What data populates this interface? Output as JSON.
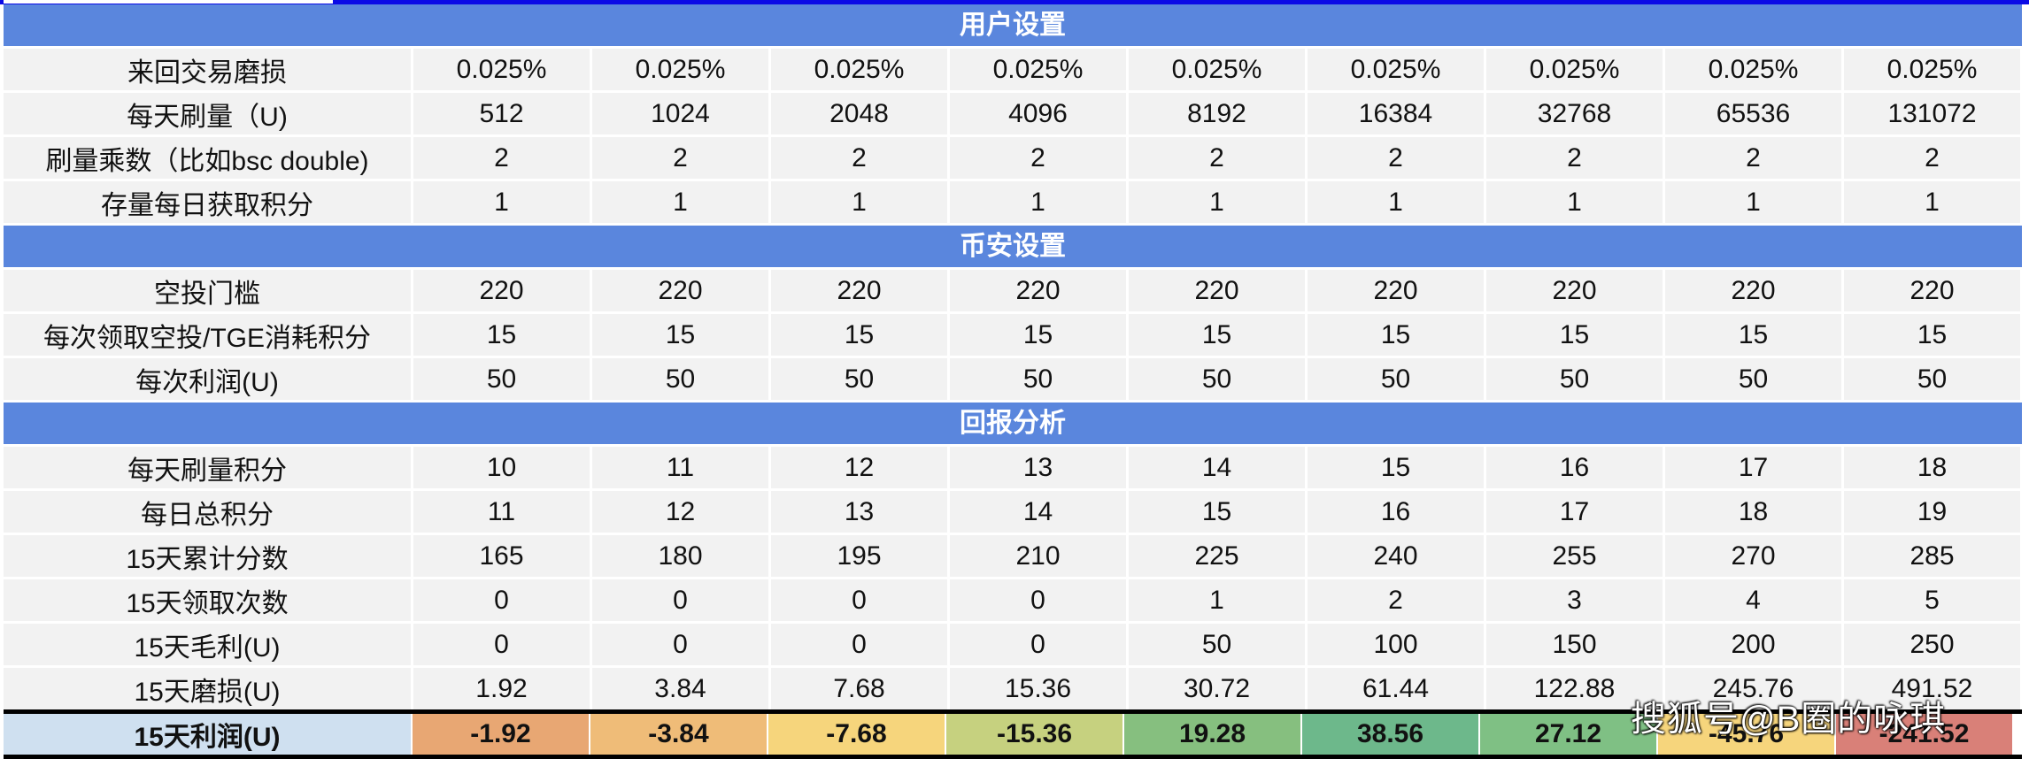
{
  "sections": [
    {
      "title": "用户设置",
      "rows": [
        {
          "label": "来回交易磨损",
          "values": [
            "0.025%",
            "0.025%",
            "0.025%",
            "0.025%",
            "0.025%",
            "0.025%",
            "0.025%",
            "0.025%",
            "0.025%"
          ]
        },
        {
          "label": "每天刷量（U)",
          "values": [
            "512",
            "1024",
            "2048",
            "4096",
            "8192",
            "16384",
            "32768",
            "65536",
            "131072"
          ]
        },
        {
          "label": "刷量乘数（比如bsc double)",
          "values": [
            "2",
            "2",
            "2",
            "2",
            "2",
            "2",
            "2",
            "2",
            "2"
          ]
        },
        {
          "label": "存量每日获取积分",
          "values": [
            "1",
            "1",
            "1",
            "1",
            "1",
            "1",
            "1",
            "1",
            "1"
          ]
        }
      ]
    },
    {
      "title": "币安设置",
      "rows": [
        {
          "label": "空投门槛",
          "values": [
            "220",
            "220",
            "220",
            "220",
            "220",
            "220",
            "220",
            "220",
            "220"
          ]
        },
        {
          "label": "每次领取空投/TGE消耗积分",
          "values": [
            "15",
            "15",
            "15",
            "15",
            "15",
            "15",
            "15",
            "15",
            "15"
          ]
        },
        {
          "label": "每次利润(U)",
          "values": [
            "50",
            "50",
            "50",
            "50",
            "50",
            "50",
            "50",
            "50",
            "50"
          ]
        }
      ]
    },
    {
      "title": "回报分析",
      "rows": [
        {
          "label": "每天刷量积分",
          "values": [
            "10",
            "11",
            "12",
            "13",
            "14",
            "15",
            "16",
            "17",
            "18"
          ]
        },
        {
          "label": "每日总积分",
          "values": [
            "11",
            "12",
            "13",
            "14",
            "15",
            "16",
            "17",
            "18",
            "19"
          ]
        },
        {
          "label": "15天累计分数",
          "values": [
            "165",
            "180",
            "195",
            "210",
            "225",
            "240",
            "255",
            "270",
            "285"
          ]
        },
        {
          "label": "15天领取次数",
          "values": [
            "0",
            "0",
            "0",
            "0",
            "1",
            "2",
            "3",
            "4",
            "5"
          ]
        },
        {
          "label": "15天毛利(U)",
          "values": [
            "0",
            "0",
            "0",
            "0",
            "50",
            "100",
            "150",
            "200",
            "250"
          ]
        },
        {
          "label": "15天磨损(U)",
          "values": [
            "1.92",
            "3.84",
            "7.68",
            "15.36",
            "30.72",
            "61.44",
            "122.88",
            "245.76",
            "491.52"
          ]
        }
      ]
    }
  ],
  "final_row": {
    "label": "15天利润(U)",
    "values": [
      "-1.92",
      "-3.84",
      "-7.68",
      "-15.36",
      "19.28",
      "38.56",
      "27.12",
      "-45.76",
      "-241.52"
    ],
    "colors": [
      "#e8a773",
      "#efbc78",
      "#f6d57c",
      "#c6d17f",
      "#86bf7f",
      "#6db88b",
      "#7fc084",
      "#f6d57c",
      "#d98078"
    ]
  },
  "watermark": "搜狐号@B圈的咏琪"
}
